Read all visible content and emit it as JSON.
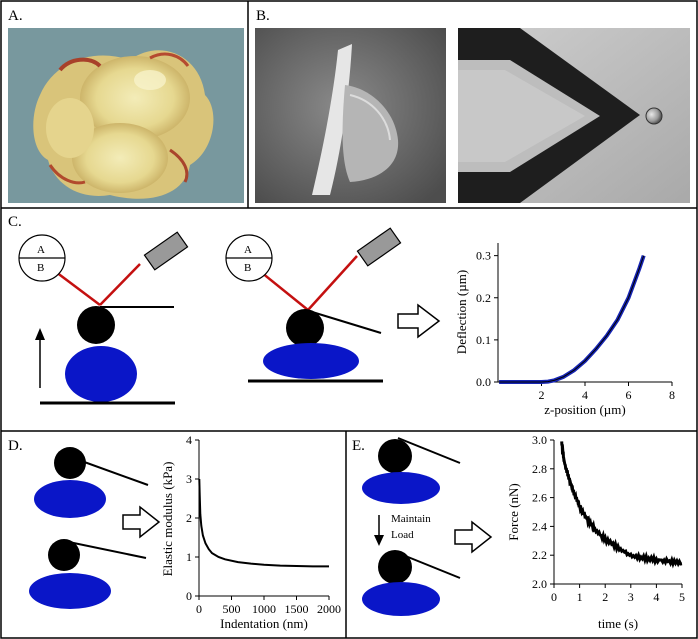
{
  "panels": {
    "A": {
      "label": "A."
    },
    "B": {
      "label": "B."
    },
    "C": {
      "label": "C."
    },
    "D": {
      "label": "D."
    },
    "E": {
      "label": "E."
    }
  },
  "diagram": {
    "photodiode_top": "A",
    "photodiode_bottom": "B",
    "maintain_line1": "Maintain",
    "maintain_line2": "Load"
  },
  "colors": {
    "cell": "#0a16c8",
    "laser": "#c41010",
    "detector": "#999999",
    "curve_blue": "#1624b4"
  },
  "chart_data": [
    {
      "id": "C",
      "type": "line",
      "xlabel": "z-position (µm)",
      "ylabel": "Deflection (µm)",
      "xticks": [
        2,
        4,
        6,
        8
      ],
      "yticks": [
        "0.0",
        "0.1",
        "0.2",
        "0.3"
      ],
      "xlim": [
        0,
        8
      ],
      "ylim": [
        0,
        0.33
      ],
      "series": [
        {
          "x": [
            0.05,
            1.0,
            2.0,
            2.3,
            2.6,
            3.0,
            3.5,
            4.0,
            4.5,
            5.0,
            5.5,
            6.0,
            6.5,
            6.7
          ],
          "y": [
            0.0,
            0.0,
            0.0,
            0.001,
            0.004,
            0.012,
            0.028,
            0.05,
            0.078,
            0.11,
            0.148,
            0.2,
            0.27,
            0.3
          ]
        }
      ]
    },
    {
      "id": "D",
      "type": "line",
      "xlabel": "Indentation (nm)",
      "ylabel": "Elastic modulus (kPa)",
      "xticks": [
        0,
        500,
        1000,
        1500,
        2000
      ],
      "yticks": [
        "0",
        "1",
        "2",
        "3",
        "4"
      ],
      "xlim": [
        0,
        2000
      ],
      "ylim": [
        0,
        4
      ],
      "series": [
        {
          "x": [
            5,
            10,
            20,
            35,
            60,
            100,
            150,
            200,
            300,
            400,
            600,
            800,
            1000,
            1250,
            1500,
            1750,
            2000
          ],
          "y": [
            3.0,
            2.6,
            2.1,
            1.8,
            1.55,
            1.35,
            1.2,
            1.1,
            1.0,
            0.94,
            0.87,
            0.83,
            0.8,
            0.78,
            0.77,
            0.76,
            0.76
          ]
        }
      ]
    },
    {
      "id": "E",
      "type": "line",
      "xlabel": "time (s)",
      "ylabel": "Force (nN)",
      "xticks": [
        0,
        1,
        2,
        3,
        4,
        5
      ],
      "yticks": [
        "2.0",
        "2.2",
        "2.4",
        "2.6",
        "2.8",
        "3.0"
      ],
      "xlim": [
        0,
        5
      ],
      "ylim": [
        2.0,
        3.0
      ],
      "series": [
        {
          "x": [
            0.3,
            0.4,
            0.6,
            0.8,
            1.0,
            1.3,
            1.6,
            2.0,
            2.5,
            3.0,
            3.5,
            4.0,
            4.5,
            5.0
          ],
          "y": [
            2.98,
            2.85,
            2.72,
            2.62,
            2.54,
            2.45,
            2.38,
            2.31,
            2.25,
            2.2,
            2.18,
            2.17,
            2.16,
            2.14
          ]
        }
      ]
    }
  ]
}
